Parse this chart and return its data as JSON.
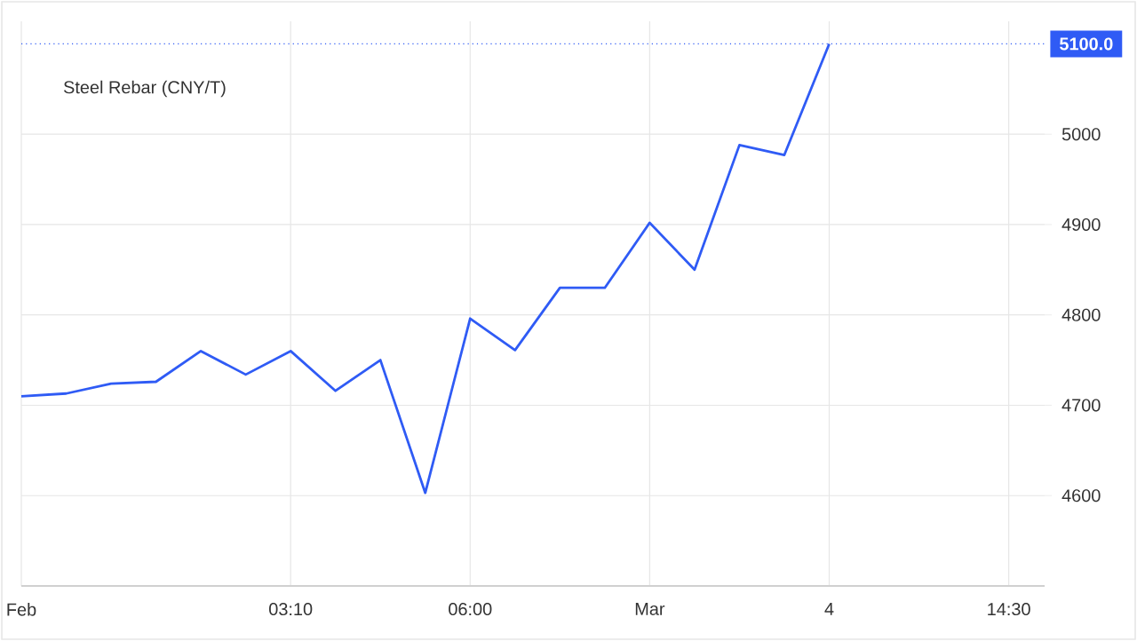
{
  "chart_data": {
    "type": "line",
    "title": "Steel Rebar (CNY/T)",
    "categories": [
      "Feb",
      null,
      null,
      null,
      null,
      null,
      "03:10",
      null,
      null,
      null,
      "06:00",
      null,
      null,
      null,
      "Mar",
      null,
      null,
      null,
      "4",
      null,
      null,
      null,
      "14:30"
    ],
    "series": [
      {
        "color": "#2f5bf5",
        "values": [
          4710,
          4713,
          4724,
          4726,
          4760,
          4734,
          4760,
          4716,
          4750,
          4603,
          4796,
          4761,
          4830,
          4830,
          4902,
          4850,
          4988,
          4977,
          5100,
          null,
          null,
          null,
          null
        ]
      }
    ],
    "ylim": [
      4500,
      5125
    ],
    "yticks": [
      4600,
      4700,
      4800,
      4900,
      5000
    ],
    "ref_lines": [
      {
        "axis": "y",
        "value": 5100,
        "label": "5100.0",
        "color": "#2f5bf5",
        "line_style": "dotted"
      }
    ],
    "grid": true,
    "line_style": "solid"
  }
}
